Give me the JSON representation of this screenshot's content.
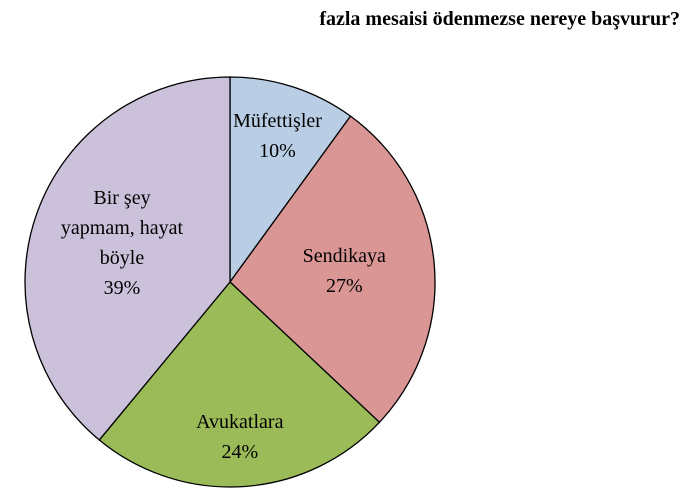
{
  "chart_data": {
    "type": "pie",
    "title": "fazla mesaisi ödenmezse nereye başvurur?",
    "categories": [
      "Müfettişler",
      "Sendikaya",
      "Avukatlara",
      "Bir şey yapmam, hayat böyle"
    ],
    "values": [
      10,
      27,
      24,
      39
    ],
    "value_labels": [
      "10%",
      "27%",
      "24%",
      "39%"
    ],
    "colors": [
      "#b9cde5",
      "#d99694",
      "#9bbb59",
      "#ccc1da"
    ]
  }
}
